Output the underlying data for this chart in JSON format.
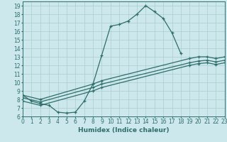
{
  "xlabel": "Humidex (Indice chaleur)",
  "bg_color": "#cce8ec",
  "line_color": "#2e6e6a",
  "grid_color": "#aacccc",
  "xlim": [
    0,
    23
  ],
  "ylim": [
    6,
    19.5
  ],
  "xticks": [
    0,
    1,
    2,
    3,
    4,
    5,
    6,
    7,
    8,
    9,
    10,
    11,
    12,
    13,
    14,
    15,
    16,
    17,
    18,
    19,
    20,
    21,
    22,
    23
  ],
  "yticks": [
    6,
    7,
    8,
    9,
    10,
    11,
    12,
    13,
    14,
    15,
    16,
    17,
    18,
    19
  ],
  "curve1_x": [
    0,
    1,
    2,
    3,
    4,
    5,
    6,
    7,
    8,
    9,
    10,
    11,
    12,
    13,
    14,
    15,
    16,
    17,
    18
  ],
  "curve1_y": [
    8.5,
    7.8,
    7.5,
    7.3,
    6.5,
    6.4,
    6.5,
    7.8,
    9.8,
    13.2,
    16.6,
    16.8,
    17.2,
    18.0,
    19.0,
    18.3,
    17.5,
    15.8,
    13.4
  ],
  "curve2_x": [
    0,
    2,
    8,
    9,
    19,
    20,
    21,
    22,
    23
  ],
  "curve2_y": [
    8.5,
    8.0,
    9.8,
    10.2,
    12.8,
    13.0,
    13.0,
    12.8,
    13.0
  ],
  "curve3_x": [
    0,
    2,
    8,
    9,
    19,
    20,
    21,
    22,
    23
  ],
  "curve3_y": [
    8.2,
    7.7,
    9.4,
    9.8,
    12.3,
    12.5,
    12.6,
    12.4,
    12.6
  ],
  "curve4_x": [
    0,
    2,
    8,
    9,
    19,
    20,
    21,
    22,
    23
  ],
  "curve4_y": [
    7.8,
    7.3,
    9.0,
    9.4,
    12.0,
    12.2,
    12.3,
    12.1,
    12.3
  ]
}
